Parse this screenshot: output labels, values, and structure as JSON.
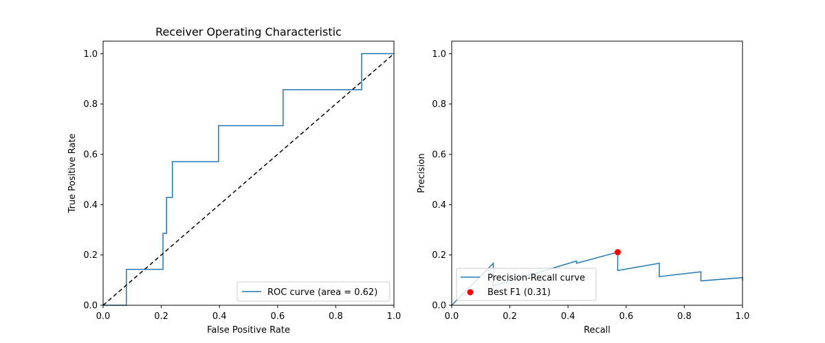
{
  "colors": {
    "curve": "#1f77b4",
    "diagonal": "#000000",
    "marker": "#ff0000",
    "axes": "#000000",
    "background": "#ffffff",
    "legend_border": "#cccccc"
  },
  "chart_data": [
    {
      "type": "line",
      "title": "Receiver Operating Characteristic",
      "xlabel": "False Positive Rate",
      "ylabel": "True Positive Rate",
      "xlim": [
        0.0,
        1.0
      ],
      "ylim": [
        0.0,
        1.05
      ],
      "xticks": [
        "0.0",
        "0.2",
        "0.4",
        "0.6",
        "0.8",
        "1.0"
      ],
      "yticks": [
        "0.0",
        "0.2",
        "0.4",
        "0.6",
        "0.8",
        "1.0"
      ],
      "legend_position": "lower-right",
      "series": [
        {
          "name": "ROC curve (area = 0.62)",
          "style": "solid",
          "x": [
            0.0,
            0.08,
            0.08,
            0.206,
            0.206,
            0.218,
            0.218,
            0.238,
            0.238,
            0.397,
            0.397,
            0.619,
            0.619,
            0.889,
            0.889,
            1.0
          ],
          "y": [
            0.0,
            0.0,
            0.143,
            0.143,
            0.286,
            0.286,
            0.429,
            0.429,
            0.571,
            0.571,
            0.714,
            0.714,
            0.857,
            0.857,
            1.0,
            1.0
          ]
        },
        {
          "name": "",
          "style": "dashed",
          "x": [
            0.0,
            1.0
          ],
          "y": [
            0.0,
            1.0
          ]
        }
      ]
    },
    {
      "type": "line",
      "title": "",
      "xlabel": "Recall",
      "ylabel": "Precision",
      "xlim": [
        0.0,
        1.0
      ],
      "ylim": [
        0.0,
        1.05
      ],
      "xticks": [
        "0.0",
        "0.2",
        "0.4",
        "0.6",
        "0.8",
        "1.0"
      ],
      "yticks": [
        "0.0",
        "0.2",
        "0.4",
        "0.6",
        "0.8",
        "1.0"
      ],
      "legend_position": "lower-left",
      "series": [
        {
          "name": "Precision-Recall curve",
          "style": "solid",
          "x": [
            0.0,
            0.143,
            0.143,
            0.429,
            0.429,
            0.571,
            0.571,
            0.714,
            0.714,
            0.857,
            0.857,
            1.0,
            1.0
          ],
          "y": [
            0.0,
            0.167,
            0.077,
            0.176,
            0.167,
            0.211,
            0.138,
            0.167,
            0.114,
            0.133,
            0.097,
            0.11,
            0.098
          ]
        }
      ],
      "points": [
        {
          "name": "Best F1 (0.31)",
          "x": 0.571,
          "y": 0.211
        }
      ]
    }
  ]
}
